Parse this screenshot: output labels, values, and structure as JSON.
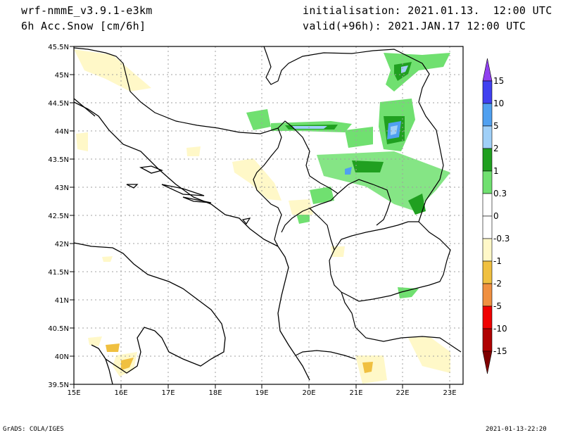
{
  "header": {
    "model": "wrf-nmmE_v3.9.1-e3km",
    "variable": "6h Acc.Snow [cm/6h]",
    "init": "initialisation: 2021.01.13.  12:00 UTC",
    "valid": "valid(+96h): 2021.JAN.17 12:00 UTC"
  },
  "footer": {
    "left": "GrADS: COLA/IGES",
    "right": "2021-01-13-22:20"
  },
  "map": {
    "lon_ticks": [
      "15E",
      "16E",
      "17E",
      "18E",
      "19E",
      "20E",
      "21E",
      "22E",
      "23E"
    ],
    "lat_ticks": [
      "45.5N",
      "45N",
      "44.5N",
      "44N",
      "43.5N",
      "43N",
      "42.5N",
      "42N",
      "41.5N",
      "41N",
      "40.5N",
      "40N",
      "39.5N"
    ]
  },
  "colorbar": {
    "labels": [
      "15",
      "10",
      "5",
      "2",
      "1",
      "0.3",
      "0",
      "-0.3",
      "-1",
      "-2",
      "-5",
      "-10",
      "-15"
    ],
    "colors": [
      "#4040f0",
      "#50a0f0",
      "#a0d0f8",
      "#20a020",
      "#70e070",
      "#ffffff",
      "#ffffff",
      "#fff8c8",
      "#f0c040",
      "#f09040",
      "#f00000",
      "#b00000"
    ],
    "top_color": "#9040f0",
    "bottom_color": "#800000"
  }
}
